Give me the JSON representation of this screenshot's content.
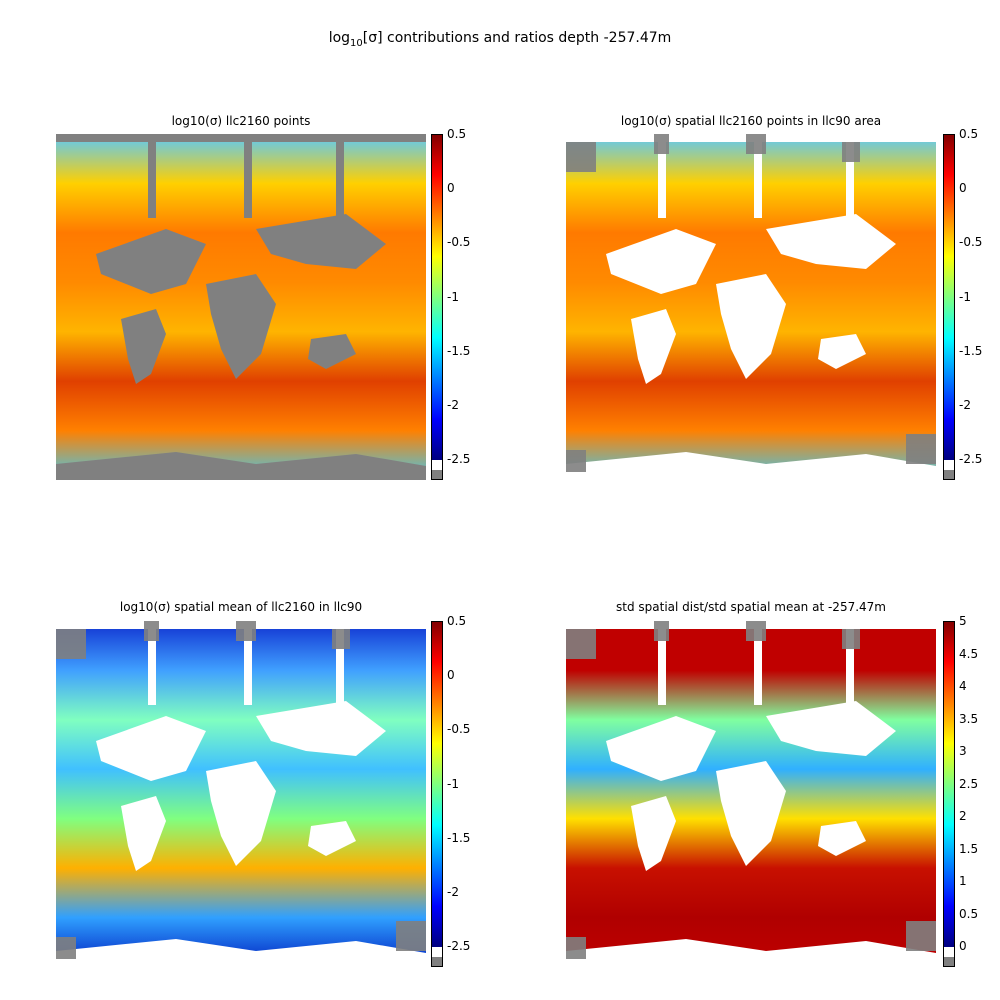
{
  "figure": {
    "title_prefix": "log",
    "title_sub": "10",
    "title_rest": "[σ] contributions and ratios     depth -257.47m"
  },
  "chart_data": [
    {
      "type": "heatmap",
      "title": "log10(σ) llc2160 points",
      "colormap": "jet",
      "missing_color": "#808080",
      "land_color": "#808080",
      "clim": [
        -2.5,
        0.5
      ],
      "colorbar_ticks": [
        "0.5",
        "0",
        "-0.5",
        "-1",
        "-1.5",
        "-2",
        "-2.5"
      ],
      "colorbar_tick_values": [
        0.5,
        0,
        -0.5,
        -1,
        -1.5,
        -2,
        -2.5
      ]
    },
    {
      "type": "heatmap",
      "title": "log10(σ) spatial llc2160 points in llc90 area",
      "colormap": "jet",
      "missing_color": "#808080",
      "land_color": "#ffffff",
      "clim": [
        -2.5,
        0.5
      ],
      "colorbar_ticks": [
        "0.5",
        "0",
        "-0.5",
        "-1",
        "-1.5",
        "-2",
        "-2.5"
      ],
      "colorbar_tick_values": [
        0.5,
        0,
        -0.5,
        -1,
        -1.5,
        -2,
        -2.5
      ]
    },
    {
      "type": "heatmap",
      "title": "log10(σ) spatial mean of llc2160 in llc90",
      "colormap": "jet",
      "missing_color": "#808080",
      "land_color": "#ffffff",
      "clim": [
        -2.5,
        0.5
      ],
      "colorbar_ticks": [
        "0.5",
        "0",
        "-0.5",
        "-1",
        "-1.5",
        "-2",
        "-2.5"
      ],
      "colorbar_tick_values": [
        0.5,
        0,
        -0.5,
        -1,
        -1.5,
        -2,
        -2.5
      ]
    },
    {
      "type": "heatmap",
      "title": "std spatial dist/std spatial mean at -257.47m",
      "colormap": "jet",
      "missing_color": "#808080",
      "land_color": "#ffffff",
      "clim": [
        0,
        5
      ],
      "colorbar_ticks": [
        "5",
        "4.5",
        "4",
        "3.5",
        "3",
        "2.5",
        "2",
        "1.5",
        "1",
        "0.5",
        "0"
      ],
      "colorbar_tick_values": [
        5,
        4.5,
        4,
        3.5,
        3,
        2.5,
        2,
        1.5,
        1,
        0.5,
        0
      ]
    }
  ]
}
